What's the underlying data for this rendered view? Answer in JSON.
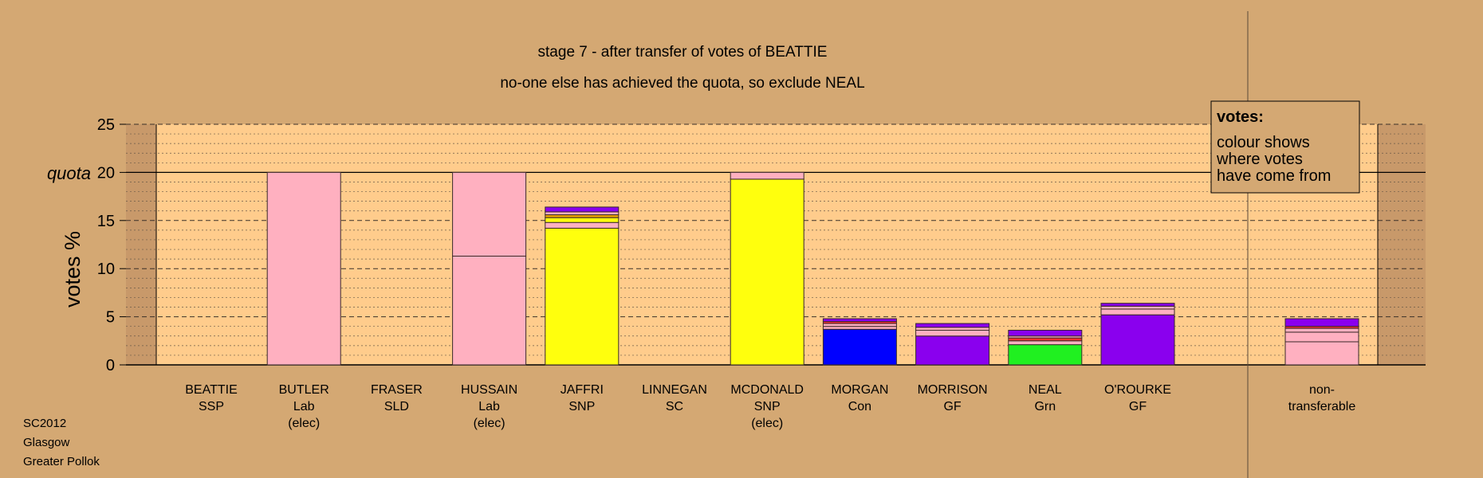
{
  "chart_data": {
    "type": "bar",
    "stacked": true,
    "title": "stage 7 - after transfer of votes of BEATTIE",
    "subtitle": "no-one else has achieved the quota, so exclude NEAL",
    "ylabel": "votes %",
    "xlabel": "",
    "ylim": [
      0,
      25
    ],
    "yticks": [
      0,
      5,
      10,
      15,
      20,
      25
    ],
    "quota": 20,
    "quota_label": "quota",
    "grid": true,
    "colors": {
      "background": "#d4a873",
      "plot": "#ffcc8c",
      "shade": "#c8996a",
      "Lab": "#ffb0c0",
      "SNP": "#ffff0d",
      "Con": "#0000ff",
      "GF": "#8a00ee",
      "Grn": "#20f020",
      "SSP": "#ff3030",
      "SLD": "#e8a000"
    },
    "legend": {
      "title": "votes:",
      "lines": [
        "colour shows",
        "where votes",
        "have come from"
      ]
    },
    "categories": [
      {
        "name": "BEATTIE",
        "party": "SSP",
        "note": "",
        "segments": []
      },
      {
        "name": "BUTLER",
        "party": "Lab",
        "note": "(elec)",
        "segments": [
          {
            "value": 20.0,
            "color": "#ffb0c0"
          }
        ]
      },
      {
        "name": "FRASER",
        "party": "SLD",
        "note": "",
        "segments": []
      },
      {
        "name": "HUSSAIN",
        "party": "Lab",
        "note": "(elec)",
        "segments": [
          {
            "value": 11.3,
            "color": "#ffb0c0"
          },
          {
            "value": 8.7,
            "color": "#ffb0c0"
          }
        ]
      },
      {
        "name": "JAFFRI",
        "party": "SNP",
        "note": "",
        "segments": [
          {
            "value": 14.2,
            "color": "#ffff0d"
          },
          {
            "value": 0.6,
            "color": "#ffb0c0"
          },
          {
            "value": 0.5,
            "color": "#ffff0d"
          },
          {
            "value": 0.3,
            "color": "#e8a000"
          },
          {
            "value": 0.3,
            "color": "#ffb0c0"
          },
          {
            "value": 0.5,
            "color": "#8a00ee"
          }
        ]
      },
      {
        "name": "LINNEGAN",
        "party": "SC",
        "note": "",
        "segments": []
      },
      {
        "name": "MCDONALD",
        "party": "SNP",
        "note": "(elec)",
        "segments": [
          {
            "value": 19.3,
            "color": "#ffff0d"
          },
          {
            "value": 0.7,
            "color": "#ffb0c0"
          }
        ]
      },
      {
        "name": "MORGAN",
        "party": "Con",
        "note": "",
        "segments": [
          {
            "value": 3.7,
            "color": "#0000ff"
          },
          {
            "value": 0.3,
            "color": "#ffb0c0"
          },
          {
            "value": 0.3,
            "color": "#ffb0c0"
          },
          {
            "value": 0.2,
            "color": "#ff3030"
          },
          {
            "value": 0.3,
            "color": "#8a00ee"
          }
        ]
      },
      {
        "name": "MORRISON",
        "party": "GF",
        "note": "",
        "segments": [
          {
            "value": 3.0,
            "color": "#8a00ee"
          },
          {
            "value": 0.6,
            "color": "#ffb0c0"
          },
          {
            "value": 0.3,
            "color": "#ffb0c0"
          },
          {
            "value": 0.4,
            "color": "#8a00ee"
          }
        ]
      },
      {
        "name": "NEAL",
        "party": "Grn",
        "note": "",
        "segments": [
          {
            "value": 2.1,
            "color": "#20f020"
          },
          {
            "value": 0.4,
            "color": "#ffb0c0"
          },
          {
            "value": 0.3,
            "color": "#ff3030"
          },
          {
            "value": 0.2,
            "color": "#ffb0c0"
          },
          {
            "value": 0.6,
            "color": "#8a00ee"
          }
        ]
      },
      {
        "name": "O'ROURKE",
        "party": "GF",
        "note": "",
        "segments": [
          {
            "value": 5.2,
            "color": "#8a00ee"
          },
          {
            "value": 0.6,
            "color": "#ffb0c0"
          },
          {
            "value": 0.3,
            "color": "#ffb0c0"
          },
          {
            "value": 0.3,
            "color": "#8a00ee"
          }
        ]
      },
      {
        "name": "non-",
        "party": "transferable",
        "note": "",
        "segments": [
          {
            "value": 2.4,
            "color": "#ffb0c0"
          },
          {
            "value": 1.0,
            "color": "#ffb0c0"
          },
          {
            "value": 0.4,
            "color": "#ffb0c0"
          },
          {
            "value": 0.2,
            "color": "#ff3030"
          },
          {
            "value": 0.8,
            "color": "#8a00ee"
          }
        ]
      }
    ]
  },
  "footer": {
    "election": "SC2012",
    "council": "Glasgow",
    "ward": "Greater Pollok"
  }
}
